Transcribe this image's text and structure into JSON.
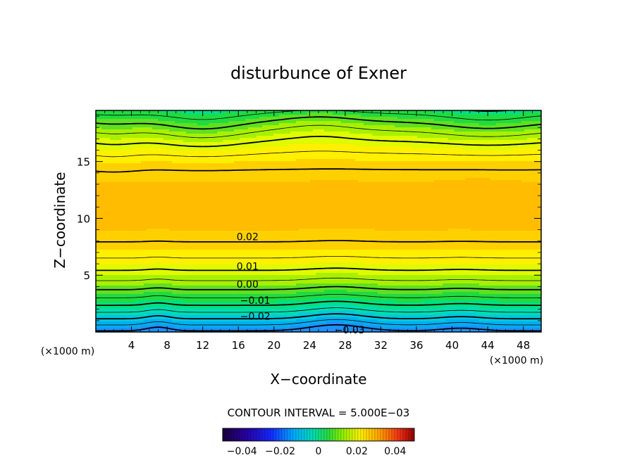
{
  "chart_data": {
    "type": "contour",
    "title": "disturbunce of Exner",
    "xlabel": "X−coordinate",
    "ylabel": "Z−coordinate",
    "x_unit_left": "(×1000 m)",
    "x_unit_right": "(×1000 m)",
    "xlim": [
      0,
      50
    ],
    "ylim": [
      0,
      19.5
    ],
    "x_ticks": [
      4,
      8,
      12,
      16,
      20,
      24,
      28,
      32,
      36,
      40,
      44,
      48
    ],
    "y_ticks": [
      5,
      10,
      15
    ],
    "contour_interval_text": "CONTOUR INTERVAL = 5.000E−03",
    "contour_levels": [
      -0.03,
      -0.025,
      -0.02,
      -0.015,
      -0.01,
      -0.005,
      0.0,
      0.005,
      0.01,
      0.015,
      0.02
    ],
    "contour_labels": [
      {
        "text": "0.02",
        "x": 15.8,
        "z": 8.4
      },
      {
        "text": "0.01",
        "x": 15.8,
        "z": 5.8
      },
      {
        "text": "0.00",
        "x": 15.8,
        "z": 4.2
      },
      {
        "text": "−0.01",
        "x": 16.2,
        "z": 2.8
      },
      {
        "text": "−0.02",
        "x": 16.2,
        "z": 1.4
      },
      {
        "text": "−0.03",
        "x": 26.8,
        "z": 0.2
      }
    ],
    "colorbar": {
      "min": -0.05,
      "max": 0.05,
      "tick_values": [
        -0.04,
        -0.02,
        0,
        0.02,
        0.04
      ],
      "tick_labels": [
        "−0.04",
        "−0.02",
        "0",
        "0.02",
        "0.04"
      ]
    },
    "colors": {
      "level_m030": "#1E90FF",
      "level_m025": "#00AEF0",
      "level_m020": "#00C8E0",
      "level_m015": "#00DCB0",
      "level_m010": "#00E080",
      "level_m005": "#20DA40",
      "level_000": "#60E020",
      "level_005": "#A8F000",
      "level_010": "#E0FA00",
      "level_015": "#FFF000",
      "level_020": "#FFD000",
      "level_025": "#FFBC00",
      "level_030": "#FFA800"
    }
  }
}
